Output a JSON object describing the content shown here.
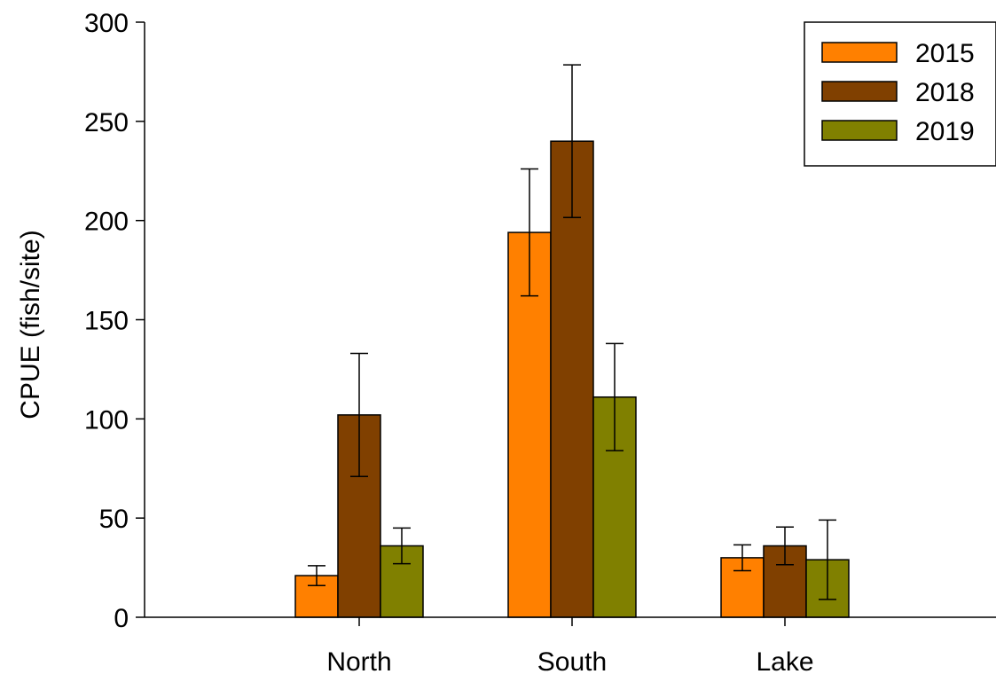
{
  "chart_data": {
    "type": "bar",
    "title": "",
    "xlabel": "",
    "ylabel": "CPUE (fish/site)",
    "ylim": [
      0,
      300
    ],
    "yticks": [
      0,
      50,
      100,
      150,
      200,
      250,
      300
    ],
    "categories": [
      "North",
      "South",
      "Lake"
    ],
    "series": [
      {
        "name": "2015",
        "color": "#FF8000",
        "values": [
          21,
          194,
          30
        ],
        "errors": [
          5,
          32,
          6.5
        ]
      },
      {
        "name": "2018",
        "color": "#804000",
        "values": [
          102,
          240,
          36
        ],
        "errors": [
          31,
          38.5,
          9.5
        ]
      },
      {
        "name": "2019",
        "color": "#808000",
        "values": [
          36,
          111,
          29
        ],
        "errors": [
          9,
          27,
          20
        ]
      }
    ],
    "legend": "top-right",
    "grid": false
  }
}
